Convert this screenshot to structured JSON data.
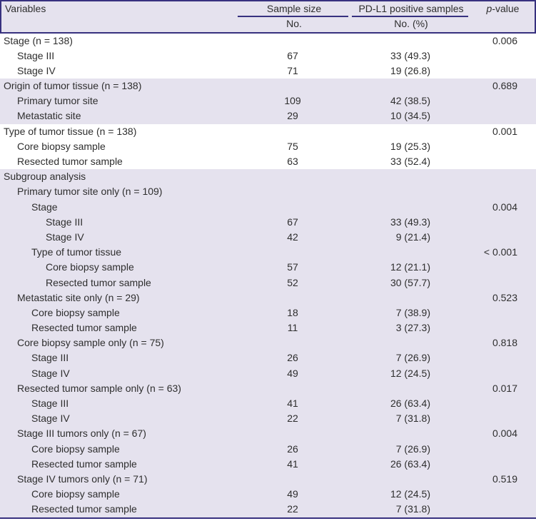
{
  "colors": {
    "rule_purple": "#37317f",
    "band_lavender": "#e5e2ee",
    "text": "#2e2e2e",
    "row_white": "#ffffff"
  },
  "table": {
    "header": {
      "variables": "Variables",
      "sample_size": "Sample size",
      "sample_size_sub": "No.",
      "pdl1": "PD-L1 positive samples",
      "pdl1_sub": "No. (%)",
      "p_italic": "p",
      "p_rest": "-value"
    },
    "rows": [
      {
        "label": "Stage (n = 138)",
        "indent": 0,
        "no": "",
        "pdl1": "",
        "p": "0.006",
        "shade": "white"
      },
      {
        "label": "Stage III",
        "indent": 1,
        "no": "67",
        "pdl1": "33 (49.3)",
        "p": "",
        "shade": "white"
      },
      {
        "label": "Stage IV",
        "indent": 1,
        "no": "71",
        "pdl1": "19 (26.8)",
        "p": "",
        "shade": "white"
      },
      {
        "label": "Origin of tumor tissue (n = 138)",
        "indent": 0,
        "no": "",
        "pdl1": "",
        "p": "0.689",
        "shade": "lav"
      },
      {
        "label": "Primary tumor site",
        "indent": 1,
        "no": "109",
        "pdl1": "42 (38.5)",
        "p": "",
        "shade": "lav"
      },
      {
        "label": "Metastatic site",
        "indent": 1,
        "no": "29",
        "pdl1": "10 (34.5)",
        "p": "",
        "shade": "lav"
      },
      {
        "label": "Type of tumor tissue (n = 138)",
        "indent": 0,
        "no": "",
        "pdl1": "",
        "p": "0.001",
        "shade": "white"
      },
      {
        "label": "Core biopsy sample",
        "indent": 1,
        "no": "75",
        "pdl1": "19 (25.3)",
        "p": "",
        "shade": "white"
      },
      {
        "label": "Resected tumor sample",
        "indent": 1,
        "no": "63",
        "pdl1": "33 (52.4)",
        "p": "",
        "shade": "white"
      },
      {
        "label": "Subgroup analysis",
        "indent": 0,
        "no": "",
        "pdl1": "",
        "p": "",
        "shade": "lav"
      },
      {
        "label": "Primary tumor site only (n = 109)",
        "indent": 1,
        "no": "",
        "pdl1": "",
        "p": "",
        "shade": "lav"
      },
      {
        "label": "Stage",
        "indent": 2,
        "no": "",
        "pdl1": "",
        "p": "0.004",
        "shade": "lav"
      },
      {
        "label": "Stage III",
        "indent": 3,
        "no": "67",
        "pdl1": "33 (49.3)",
        "p": "",
        "shade": "lav"
      },
      {
        "label": "Stage IV",
        "indent": 3,
        "no": "42",
        "pdl1": "9 (21.4)",
        "p": "",
        "shade": "lav"
      },
      {
        "label": "Type of tumor tissue",
        "indent": 2,
        "no": "",
        "pdl1": "",
        "p": "< 0.001",
        "shade": "lav"
      },
      {
        "label": "Core biopsy sample",
        "indent": 3,
        "no": "57",
        "pdl1": "12 (21.1)",
        "p": "",
        "shade": "lav"
      },
      {
        "label": "Resected tumor sample",
        "indent": 3,
        "no": "52",
        "pdl1": "30 (57.7)",
        "p": "",
        "shade": "lav"
      },
      {
        "label": "Metastatic site only (n = 29)",
        "indent": 1,
        "no": "",
        "pdl1": "",
        "p": "0.523",
        "shade": "lav"
      },
      {
        "label": "Core biopsy sample",
        "indent": 2,
        "no": "18",
        "pdl1": "7 (38.9)",
        "p": "",
        "shade": "lav"
      },
      {
        "label": "Resected tumor sample",
        "indent": 2,
        "no": "11",
        "pdl1": "3 (27.3)",
        "p": "",
        "shade": "lav"
      },
      {
        "label": "Core biopsy sample only (n = 75)",
        "indent": 1,
        "no": "",
        "pdl1": "",
        "p": "0.818",
        "shade": "lav"
      },
      {
        "label": "Stage III",
        "indent": 2,
        "no": "26",
        "pdl1": "7 (26.9)",
        "p": "",
        "shade": "lav"
      },
      {
        "label": "Stage IV",
        "indent": 2,
        "no": "49",
        "pdl1": "12 (24.5)",
        "p": "",
        "shade": "lav"
      },
      {
        "label": "Resected tumor sample only (n = 63)",
        "indent": 1,
        "no": "",
        "pdl1": "",
        "p": "0.017",
        "shade": "lav"
      },
      {
        "label": "Stage III",
        "indent": 2,
        "no": "41",
        "pdl1": "26 (63.4)",
        "p": "",
        "shade": "lav"
      },
      {
        "label": "Stage IV",
        "indent": 2,
        "no": "22",
        "pdl1": "7 (31.8)",
        "p": "",
        "shade": "lav"
      },
      {
        "label": "Stage III tumors only (n = 67)",
        "indent": 1,
        "no": "",
        "pdl1": "",
        "p": "0.004",
        "shade": "lav"
      },
      {
        "label": "Core biopsy sample",
        "indent": 2,
        "no": "26",
        "pdl1": "7 (26.9)",
        "p": "",
        "shade": "lav"
      },
      {
        "label": "Resected tumor sample",
        "indent": 2,
        "no": "41",
        "pdl1": "26 (63.4)",
        "p": "",
        "shade": "lav"
      },
      {
        "label": "Stage IV tumors only (n = 71)",
        "indent": 1,
        "no": "",
        "pdl1": "",
        "p": "0.519",
        "shade": "lav"
      },
      {
        "label": "Core biopsy sample",
        "indent": 2,
        "no": "49",
        "pdl1": "12 (24.5)",
        "p": "",
        "shade": "lav"
      },
      {
        "label": "Resected tumor sample",
        "indent": 2,
        "no": "22",
        "pdl1": "7 (31.8)",
        "p": "",
        "shade": "lav"
      }
    ]
  }
}
